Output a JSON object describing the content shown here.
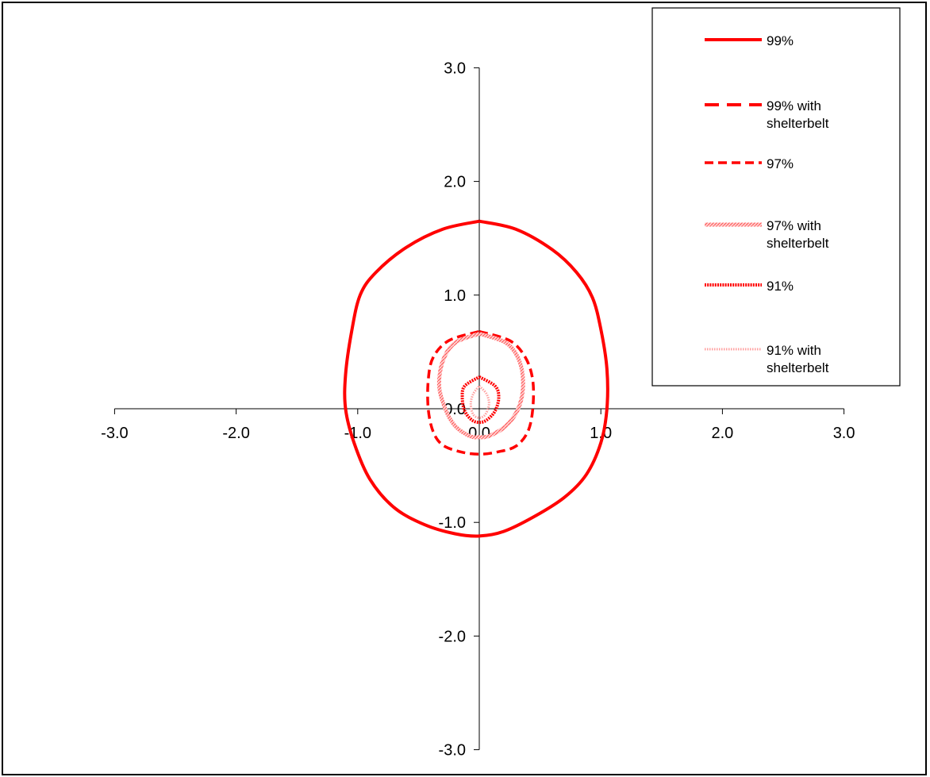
{
  "chart_data": {
    "type": "line",
    "title": "",
    "xlabel": "",
    "ylabel": "",
    "xlim": [
      -3.0,
      3.0
    ],
    "ylim": [
      -3.0,
      3.0
    ],
    "x_ticks": [
      "-3.0",
      "-2.0",
      "-1.0",
      "0.0",
      "1.0",
      "2.0",
      "3.0"
    ],
    "y_ticks": [
      "3.0",
      "2.0",
      "1.0",
      "0.0",
      "-1.0",
      "-2.0",
      "-3.0"
    ],
    "grid": false,
    "legend_position": "top-right",
    "series": [
      {
        "name": "99%",
        "color": "#ff0000",
        "style": "solid",
        "x": [
          0.0,
          0.3,
          0.6,
          0.8,
          0.93,
          1.0,
          1.05,
          1.05,
          1.0,
          0.88,
          0.7,
          0.45,
          0.2,
          0.0,
          -0.2,
          -0.45,
          -0.7,
          -0.9,
          -1.03,
          -1.1,
          -1.1,
          -1.05,
          -0.98,
          -0.85,
          -0.6,
          -0.3,
          0.0
        ],
        "y": [
          1.65,
          1.58,
          1.4,
          1.2,
          0.98,
          0.7,
          0.35,
          0.0,
          -0.3,
          -0.58,
          -0.78,
          -0.95,
          -1.08,
          -1.12,
          -1.1,
          -1.02,
          -0.87,
          -0.62,
          -0.3,
          0.0,
          0.3,
          0.68,
          1.0,
          1.2,
          1.42,
          1.58,
          1.65
        ]
      },
      {
        "name": "99% with shelterbelt",
        "color": "#ff0000",
        "style": "longdash",
        "x": [],
        "y": []
      },
      {
        "name": "97%",
        "color": "#ff0000",
        "style": "dash",
        "x": [
          0.0,
          0.25,
          0.38,
          0.44,
          0.44,
          0.4,
          0.3,
          0.15,
          0.0,
          -0.15,
          -0.3,
          -0.38,
          -0.42,
          -0.42,
          -0.38,
          -0.25,
          0.0
        ],
        "y": [
          0.68,
          0.6,
          0.45,
          0.25,
          0.0,
          -0.2,
          -0.33,
          -0.38,
          -0.4,
          -0.38,
          -0.32,
          -0.2,
          0.0,
          0.25,
          0.45,
          0.6,
          0.68
        ]
      },
      {
        "name": "97% with shelterbelt",
        "color": "#ff7070",
        "style": "hatched",
        "x": [
          0.0,
          0.22,
          0.33,
          0.36,
          0.32,
          0.22,
          0.08,
          0.0,
          -0.08,
          -0.2,
          -0.28,
          -0.33,
          -0.3,
          -0.2,
          0.0
        ],
        "y": [
          0.66,
          0.58,
          0.42,
          0.2,
          0.0,
          -0.15,
          -0.24,
          -0.25,
          -0.24,
          -0.15,
          0.0,
          0.2,
          0.42,
          0.58,
          0.66
        ]
      },
      {
        "name": "91%",
        "color": "#ff0000",
        "style": "dotted-thick",
        "x": [
          0.0,
          0.13,
          0.16,
          0.13,
          0.06,
          0.0,
          -0.06,
          -0.12,
          -0.14,
          -0.12,
          0.0
        ],
        "y": [
          0.28,
          0.2,
          0.1,
          -0.02,
          -0.1,
          -0.12,
          -0.1,
          -0.02,
          0.1,
          0.2,
          0.28
        ]
      },
      {
        "name": "91% with shelterbelt",
        "color": "#ffa0a0",
        "style": "dotted-light",
        "x": [
          0.0,
          0.06,
          0.08,
          0.05,
          0.0,
          -0.05,
          -0.07,
          -0.05,
          0.0
        ],
        "y": [
          0.2,
          0.13,
          0.04,
          -0.05,
          -0.08,
          -0.05,
          0.04,
          0.13,
          0.2
        ]
      }
    ],
    "legend": {
      "entries": [
        {
          "lines": [
            "99%"
          ],
          "series": 0
        },
        {
          "lines": [
            "99% with",
            "shelterbelt"
          ],
          "series": 1
        },
        {
          "lines": [
            "97%"
          ],
          "series": 2
        },
        {
          "lines": [
            "97% with",
            "shelterbelt"
          ],
          "series": 3
        },
        {
          "lines": [
            "91%"
          ],
          "series": 4
        },
        {
          "lines": [
            "91% with",
            "shelterbelt"
          ],
          "series": 5
        }
      ]
    }
  }
}
